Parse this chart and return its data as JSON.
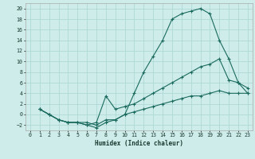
{
  "xlabel": "Humidex (Indice chaleur)",
  "bg_color": "#ceecea",
  "grid_color": "#aed8d4",
  "line_color": "#1a6b5e",
  "xlim": [
    -0.5,
    23.5
  ],
  "ylim": [
    -3,
    21
  ],
  "xticks": [
    0,
    1,
    2,
    3,
    4,
    5,
    6,
    7,
    8,
    9,
    10,
    11,
    12,
    13,
    14,
    15,
    16,
    17,
    18,
    19,
    20,
    21,
    22,
    23
  ],
  "yticks": [
    -2,
    0,
    2,
    4,
    6,
    8,
    10,
    12,
    14,
    16,
    18,
    20
  ],
  "line1_x": [
    1,
    2,
    3,
    4,
    5,
    6,
    7,
    8,
    9,
    10,
    11,
    12,
    13,
    14,
    15,
    16,
    17,
    18,
    19,
    20,
    21,
    22,
    23
  ],
  "line1_y": [
    1,
    0,
    -1,
    -1.5,
    -1.5,
    -1.5,
    -2,
    -1,
    -1,
    0,
    4,
    8,
    11,
    14,
    18,
    19,
    19.5,
    20,
    19,
    14,
    10.5,
    6,
    4
  ],
  "line2_x": [
    1,
    2,
    3,
    4,
    5,
    6,
    7,
    8,
    9,
    10,
    11,
    12,
    13,
    14,
    15,
    16,
    17,
    18,
    19,
    20,
    21,
    22,
    23
  ],
  "line2_y": [
    1,
    0,
    -1,
    -1.5,
    -1.5,
    -2,
    -1.5,
    3.5,
    1.0,
    1.5,
    2,
    3,
    4,
    5,
    6,
    7,
    8,
    9,
    9.5,
    10.5,
    6.5,
    6,
    5
  ],
  "line3_x": [
    1,
    2,
    3,
    4,
    5,
    6,
    7,
    8,
    9,
    10,
    11,
    12,
    13,
    14,
    15,
    16,
    17,
    18,
    19,
    20,
    21,
    22,
    23
  ],
  "line3_y": [
    1,
    0,
    -1,
    -1.5,
    -1.5,
    -2,
    -2.5,
    -1.5,
    -1,
    0,
    0.5,
    1,
    1.5,
    2,
    2.5,
    3,
    3.5,
    3.5,
    4,
    4.5,
    4,
    4,
    4
  ]
}
